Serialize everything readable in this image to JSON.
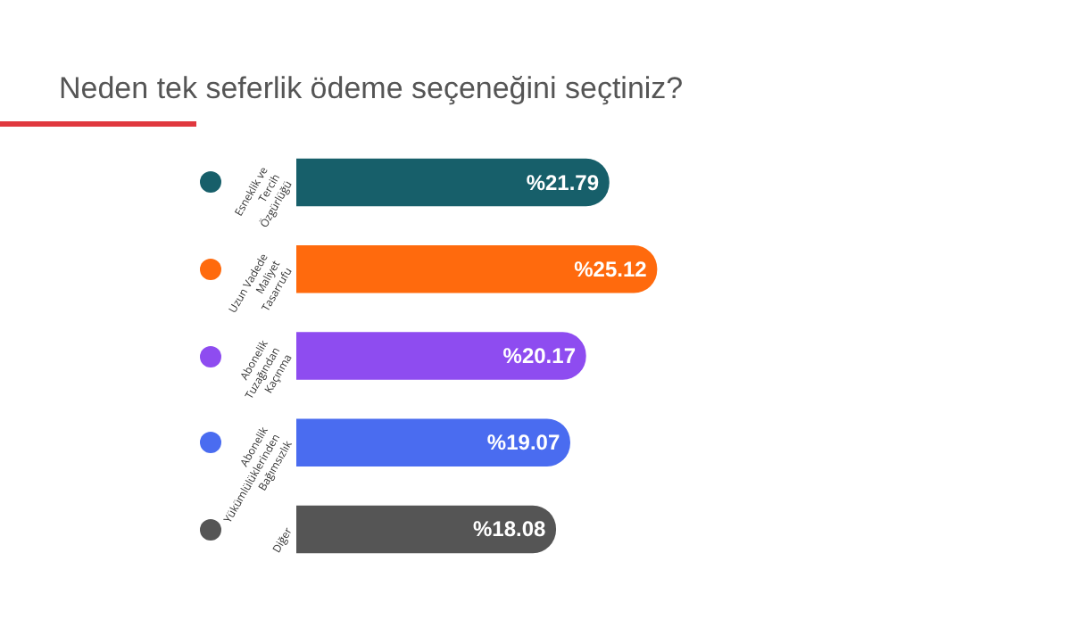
{
  "chart_data": {
    "type": "bar",
    "orientation": "horizontal",
    "title": "Neden tek seferlik ödeme seçeneğini seçtiniz?",
    "categories": [
      "Esneklik ve Tercih Özgürlüğü",
      "Uzun Vadede Maliyet Tasarrufu",
      "Abonelik Tuzağından Kaçınma",
      "Abonelik Yükümlülüklerinden Bağımsızlık",
      "Diğer"
    ],
    "values": [
      21.79,
      25.12,
      20.17,
      19.07,
      18.08
    ],
    "colors": [
      "#175f6a",
      "#ff6a0d",
      "#8e4cf0",
      "#4a6cf0",
      "#555555"
    ],
    "value_labels": [
      "%21.79",
      "%25.12",
      "%20.17",
      "%19.07",
      "%18.08"
    ],
    "tick_labels": "y"
  }
}
